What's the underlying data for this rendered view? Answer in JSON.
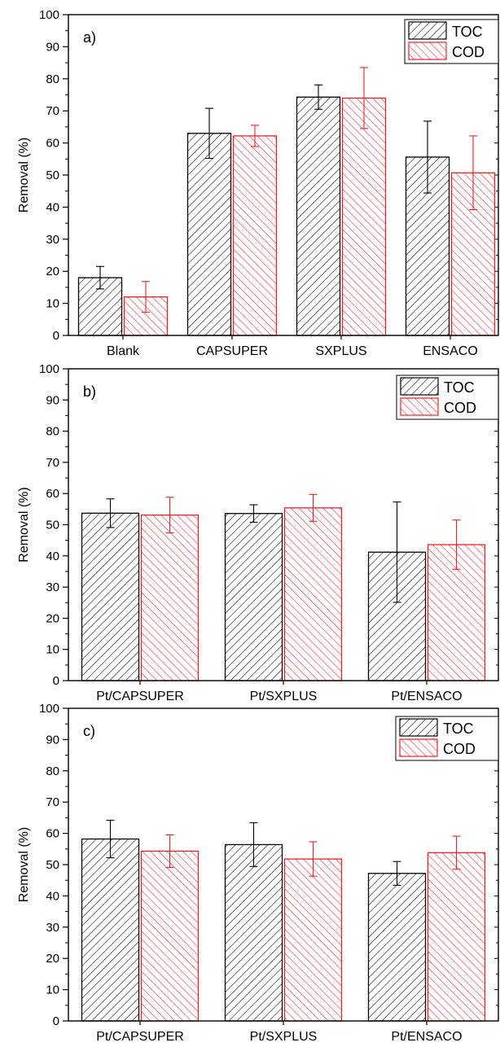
{
  "figure": {
    "panels": [
      {
        "label": "a)",
        "ylabel": "Removal (%)"
      },
      {
        "label": "b)",
        "ylabel": "Removal (%)"
      },
      {
        "label": "c)",
        "ylabel": "Removal (%)"
      }
    ]
  },
  "colors": {
    "toc": "#000000",
    "cod": "#e8202a"
  },
  "chart_data": [
    {
      "type": "bar",
      "panel_label": "a)",
      "ylabel": "Removal (%)",
      "xlabel": "",
      "ylim": [
        0,
        100
      ],
      "yticks": [
        0,
        10,
        20,
        30,
        40,
        50,
        60,
        70,
        80,
        90,
        100
      ],
      "categories": [
        "Blank",
        "CAPSUPER",
        "SXPLUS",
        "ENSACO"
      ],
      "series": [
        {
          "name": "TOC",
          "values": [
            18,
            63,
            74.3,
            55.6
          ],
          "errors": [
            3.5,
            7.8,
            3.8,
            11.2
          ]
        },
        {
          "name": "COD",
          "values": [
            12,
            62.2,
            74,
            50.7
          ],
          "errors": [
            4.8,
            3.3,
            9.5,
            11.5
          ]
        }
      ],
      "legend_position": "top-right",
      "grid": false
    },
    {
      "type": "bar",
      "panel_label": "b)",
      "ylabel": "Removal (%)",
      "xlabel": "",
      "ylim": [
        0,
        100
      ],
      "yticks": [
        0,
        10,
        20,
        30,
        40,
        50,
        60,
        70,
        80,
        90,
        100
      ],
      "categories": [
        "Pt/CAPSUPER",
        "Pt/SXPLUS",
        "Pt/ENSACO"
      ],
      "series": [
        {
          "name": "TOC",
          "values": [
            53.7,
            53.6,
            41.2
          ],
          "errors": [
            4.6,
            2.8,
            16.1
          ]
        },
        {
          "name": "COD",
          "values": [
            53.1,
            55.4,
            43.6
          ],
          "errors": [
            5.7,
            4.3,
            7.9
          ]
        }
      ],
      "legend_position": "top-right",
      "grid": false
    },
    {
      "type": "bar",
      "panel_label": "c)",
      "ylabel": "Removal (%)",
      "xlabel": "",
      "ylim": [
        0,
        100
      ],
      "yticks": [
        0,
        10,
        20,
        30,
        40,
        50,
        60,
        70,
        80,
        90,
        100
      ],
      "categories": [
        "Pt/CAPSUPER",
        "Pt/SXPLUS",
        "Pt/ENSACO"
      ],
      "series": [
        {
          "name": "TOC",
          "values": [
            58.2,
            56.4,
            47.2
          ],
          "errors": [
            6.0,
            7.0,
            3.8
          ]
        },
        {
          "name": "COD",
          "values": [
            54.3,
            51.8,
            53.8
          ],
          "errors": [
            5.2,
            5.5,
            5.3
          ]
        }
      ],
      "legend_position": "top-right",
      "grid": false
    }
  ]
}
